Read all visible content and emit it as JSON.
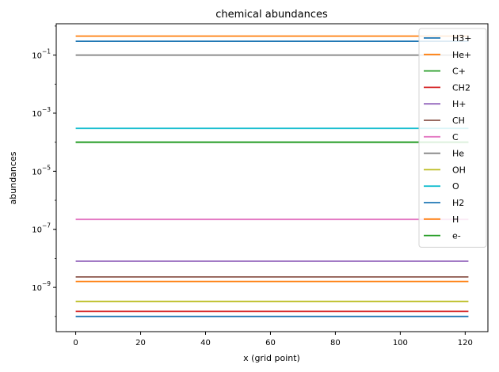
{
  "chart_data": {
    "type": "line",
    "title": "chemical abundances",
    "xlabel": "x (grid point)",
    "ylabel": "abundances",
    "xlim": [
      -6,
      127
    ],
    "ylim": [
      3e-11,
      1.2
    ],
    "yscale": "log",
    "x_ticks": [
      0,
      20,
      40,
      60,
      80,
      100,
      120
    ],
    "y_ticks": [
      {
        "value": 0.1,
        "mantissa": "10",
        "exp": "−1"
      },
      {
        "value": 0.001,
        "mantissa": "10",
        "exp": "−3"
      },
      {
        "value": 1e-05,
        "mantissa": "10",
        "exp": "−5"
      },
      {
        "value": 1e-07,
        "mantissa": "10",
        "exp": "−7"
      },
      {
        "value": 1e-09,
        "mantissa": "10",
        "exp": "−9"
      }
    ],
    "x_range": [
      0,
      121
    ],
    "legend_position": "top-right",
    "grid": false,
    "series": [
      {
        "name": "H3+",
        "color": "#1f77b4",
        "value": 1e-10
      },
      {
        "name": "He+",
        "color": "#ff7f0e",
        "value": 1.6e-09
      },
      {
        "name": "C+",
        "color": "#2ca02c",
        "value": 0.0001
      },
      {
        "name": "CH2",
        "color": "#d62728",
        "value": 1.5e-10
      },
      {
        "name": "H+",
        "color": "#9467bd",
        "value": 8e-09
      },
      {
        "name": "CH",
        "color": "#8c564b",
        "value": 2.3e-09
      },
      {
        "name": "C",
        "color": "#e377c2",
        "value": 2.2e-07
      },
      {
        "name": "He",
        "color": "#7f7f7f",
        "value": 0.1
      },
      {
        "name": "OH",
        "color": "#bcbd22",
        "value": 3.3e-10
      },
      {
        "name": "O",
        "color": "#17becf",
        "value": 0.0003
      },
      {
        "name": "H2",
        "color": "#1f77b4",
        "value": 0.3
      },
      {
        "name": "H",
        "color": "#ff7f0e",
        "value": 0.45
      },
      {
        "name": "e-",
        "color": "#2ca02c",
        "value": 0.0001
      }
    ]
  }
}
